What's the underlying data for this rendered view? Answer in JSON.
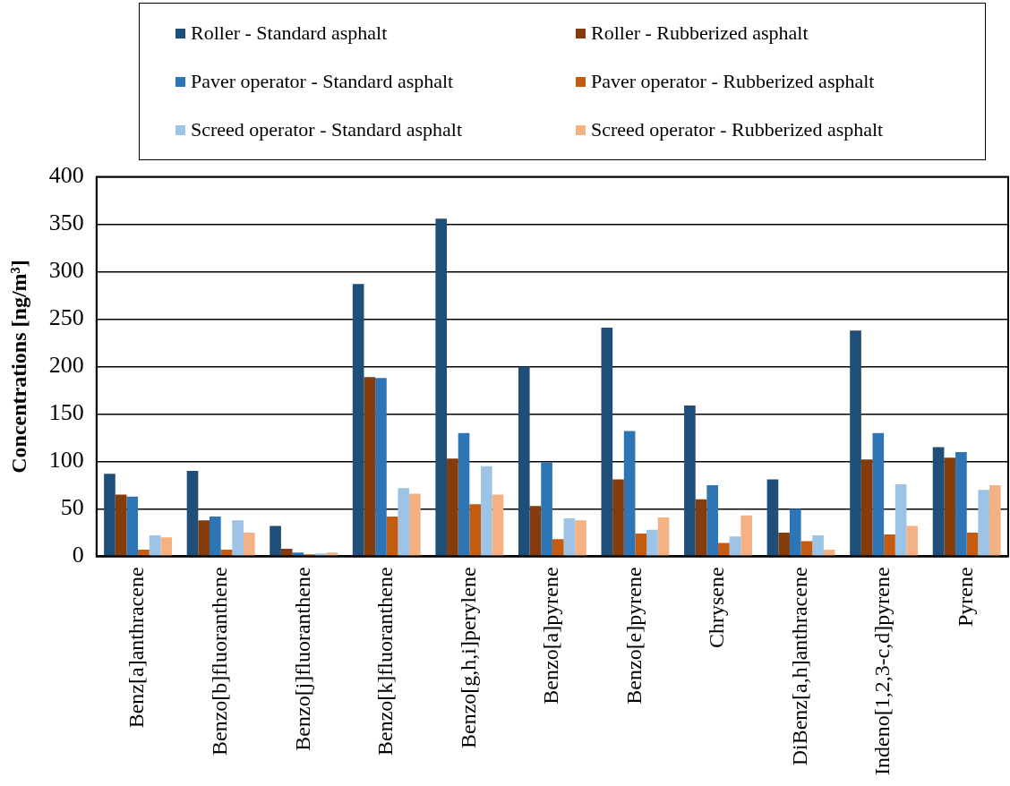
{
  "chart_data": {
    "type": "bar",
    "ylabel": "Concentrations [ng/m³]",
    "categories": [
      "Benz[a]anthracene",
      "Benzo[b]fluoranthene",
      "Benzo[j]fluoranthene",
      "Benzo[k]fluoranthene",
      "Benzo[g,h,i]perylene",
      "Benzo[a]pyrene",
      "Benzo[e]pyrene",
      "Chrysene",
      "DiBenz[a,h]anthracene",
      "Indeno[1,2,3-c,d]pyrene",
      "Pyrene"
    ],
    "series": [
      {
        "name": "Roller - Standard asphalt",
        "color": "#1f4e79",
        "values": [
          87,
          90,
          32,
          287,
          356,
          200,
          241,
          159,
          81,
          238,
          115
        ]
      },
      {
        "name": "Roller - Rubberized asphalt",
        "color": "#843c0c",
        "values": [
          65,
          38,
          8,
          189,
          103,
          53,
          81,
          60,
          25,
          102,
          104
        ]
      },
      {
        "name": "Paver operator - Standard asphalt",
        "color": "#2e75b6",
        "values": [
          63,
          42,
          4,
          188,
          130,
          99,
          132,
          75,
          50,
          130,
          110
        ]
      },
      {
        "name": "Paver operator - Rubberized asphalt",
        "color": "#c55a11",
        "values": [
          7,
          7,
          2,
          42,
          55,
          18,
          24,
          14,
          16,
          23,
          25
        ]
      },
      {
        "name": "Screed operator - Standard asphalt",
        "color": "#9dc3e6",
        "values": [
          22,
          38,
          3,
          72,
          95,
          40,
          28,
          21,
          22,
          76,
          70
        ]
      },
      {
        "name": "Screed operator - Rubberized asphalt",
        "color": "#f4b183",
        "values": [
          20,
          25,
          4,
          66,
          65,
          38,
          41,
          43,
          7,
          32,
          75
        ]
      }
    ],
    "ylim": [
      0,
      400
    ],
    "yticks": [
      0,
      50,
      100,
      150,
      200,
      250,
      300,
      350,
      400
    ],
    "grid": "y",
    "legend": "top"
  }
}
